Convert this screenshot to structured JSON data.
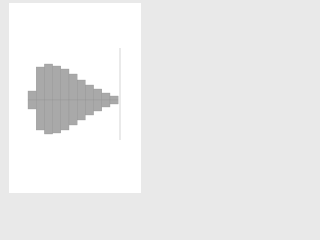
{
  "chart_data": {
    "type": "pyramid",
    "categories": [
      null,
      null,
      null,
      null,
      null,
      null,
      null,
      null,
      null,
      null,
      null
    ],
    "series": [
      {
        "color": "#a9a9a9",
        "values": [
          9,
          33,
          36,
          34,
          31,
          26,
          20,
          15,
          11,
          7,
          4
        ]
      },
      {
        "color": "#a9a9a9",
        "values": [
          9,
          30,
          34,
          33,
          30,
          25,
          20,
          15,
          11,
          7,
          4
        ]
      }
    ],
    "ylim": [
      0,
      40
    ]
  }
}
